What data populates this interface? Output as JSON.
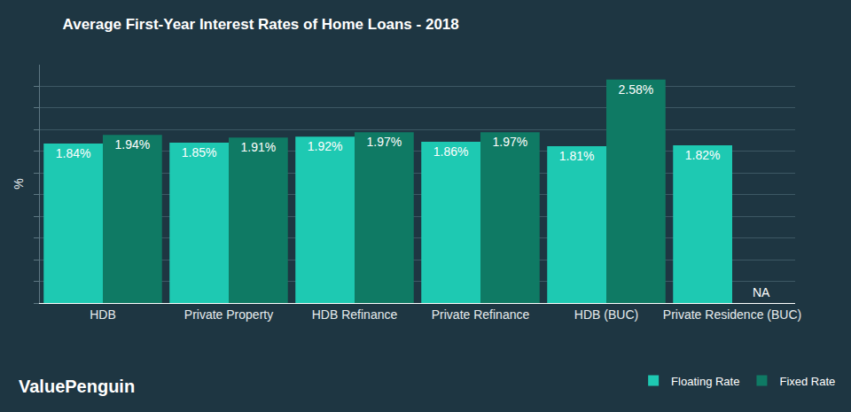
{
  "chart_data": {
    "type": "bar",
    "title": "Average First-Year Interest Rates of Home Loans - 2018",
    "y_label": "%",
    "source": "ValuePenguin",
    "categories": [
      "HDB",
      "Private Property",
      "HDB Refinance",
      "Private Refinance",
      "HDB (BUC)",
      "Private Residence (BUC)"
    ],
    "series": [
      {
        "name": "Floating Rate",
        "color": "#1ec9b2",
        "values": [
          1.84,
          1.85,
          1.92,
          1.86,
          1.81,
          1.82
        ],
        "value_labels": [
          "1.84%",
          "1.85%",
          "1.92%",
          "1.86%",
          "1.81%",
          "1.82%"
        ]
      },
      {
        "name": "Fixed Rate",
        "color": "#0f7a64",
        "values": [
          1.94,
          1.91,
          1.97,
          1.97,
          2.58,
          null
        ],
        "value_labels": [
          "1.94%",
          "1.91%",
          "1.97%",
          "1.97%",
          "2.58%",
          "NA"
        ]
      }
    ],
    "ylim": [
      0,
      2.75
    ],
    "yticks": [
      0,
      0.25,
      0.5,
      0.75,
      1,
      1.25,
      1.5,
      1.75,
      2,
      2.25,
      2.5
    ],
    "grid": true,
    "legend": "bottom right",
    "data_labels": true,
    "tick_labels": "x"
  }
}
